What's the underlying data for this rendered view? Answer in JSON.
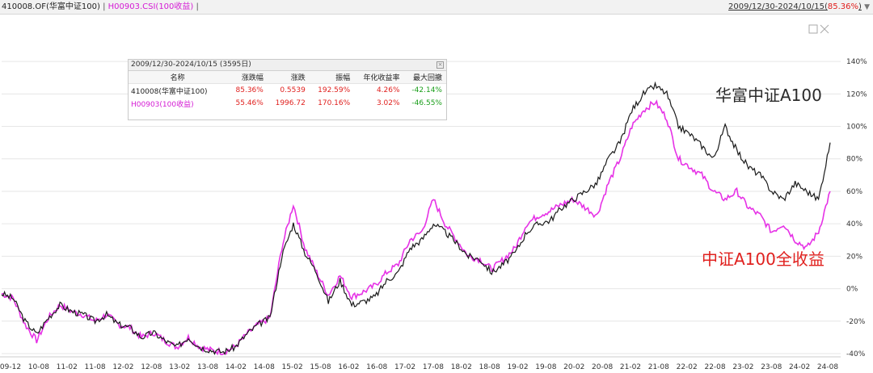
{
  "header": {
    "series1": "410008.OF(华富中证100)",
    "sep1": "|",
    "series2": "H00903.CSI(100收益)",
    "sep2": "|",
    "range": "2009/12/30-2024/10/15",
    "range_pct": "85.36%"
  },
  "stats": {
    "title": "2009/12/30-2024/10/15 (3595日)",
    "columns": [
      "名称",
      "涨跌幅",
      "涨跌",
      "振幅",
      "年化收益率",
      "最大回撤"
    ],
    "rows": [
      [
        "410008(华富中证100)",
        "85.36%",
        "0.5539",
        "192.59%",
        "4.26%",
        "-42.14%"
      ],
      [
        "H00903(100收益)",
        "55.46%",
        "1996.72",
        "170.16%",
        "3.02%",
        "-46.55%"
      ]
    ]
  },
  "colors": {
    "fund": "#1a1a1a",
    "index": "#e632e6",
    "annotation_fund": "#2a2a2a",
    "annotation_index": "#e0201e",
    "grid": "#e6e6e6"
  },
  "chart_data": {
    "type": "line",
    "x_ticks": [
      "09-12",
      "10-08",
      "11-02",
      "11-08",
      "12-02",
      "12-08",
      "13-02",
      "13-08",
      "14-02",
      "14-08",
      "15-02",
      "15-08",
      "16-02",
      "16-08",
      "17-02",
      "17-08",
      "18-02",
      "18-08",
      "19-02",
      "19-08",
      "20-02",
      "20-08",
      "21-02",
      "21-08",
      "22-02",
      "22-08",
      "23-02",
      "23-08",
      "24-02",
      "24-08"
    ],
    "y_ticks": [
      "140%",
      "120%",
      "100%",
      "80%",
      "60%",
      "40%",
      "20%",
      "0%",
      "-20%",
      "-40%"
    ],
    "ylim": [
      -40,
      150
    ],
    "grid": true,
    "series": [
      {
        "name": "华富中证A100",
        "values": [
          -3,
          -6,
          -20,
          -28,
          -18,
          -10,
          -14,
          -16,
          -20,
          -16,
          -22,
          -24,
          -30,
          -27,
          -32,
          -36,
          -30,
          -36,
          -38,
          -39,
          -36,
          -28,
          -22,
          -18,
          20,
          40,
          22,
          10,
          -8,
          5,
          -10,
          -8,
          -5,
          5,
          10,
          25,
          30,
          40,
          35,
          28,
          20,
          18,
          10,
          15,
          22,
          35,
          40,
          42,
          50,
          55,
          60,
          65,
          80,
          90,
          110,
          120,
          125,
          120,
          100,
          95,
          88,
          80,
          100,
          85,
          75,
          70,
          60,
          55,
          65,
          60,
          55,
          90
        ]
      },
      {
        "name": "中证A100全收益",
        "values": [
          -3,
          -6,
          -22,
          -32,
          -18,
          -10,
          -14,
          -16,
          -20,
          -16,
          -22,
          -24,
          -30,
          -27,
          -32,
          -36,
          -30,
          -36,
          -38,
          -39,
          -36,
          -28,
          -22,
          -18,
          25,
          52,
          25,
          10,
          -4,
          8,
          -5,
          -2,
          2,
          10,
          15,
          30,
          35,
          55,
          40,
          30,
          20,
          18,
          12,
          18,
          25,
          40,
          45,
          48,
          52,
          55,
          50,
          45,
          65,
          80,
          100,
          110,
          115,
          105,
          80,
          75,
          70,
          60,
          55,
          60,
          50,
          45,
          35,
          40,
          30,
          25,
          35,
          60
        ]
      }
    ],
    "annotations": [
      "华富中证A100",
      "中证A100全收益"
    ]
  }
}
